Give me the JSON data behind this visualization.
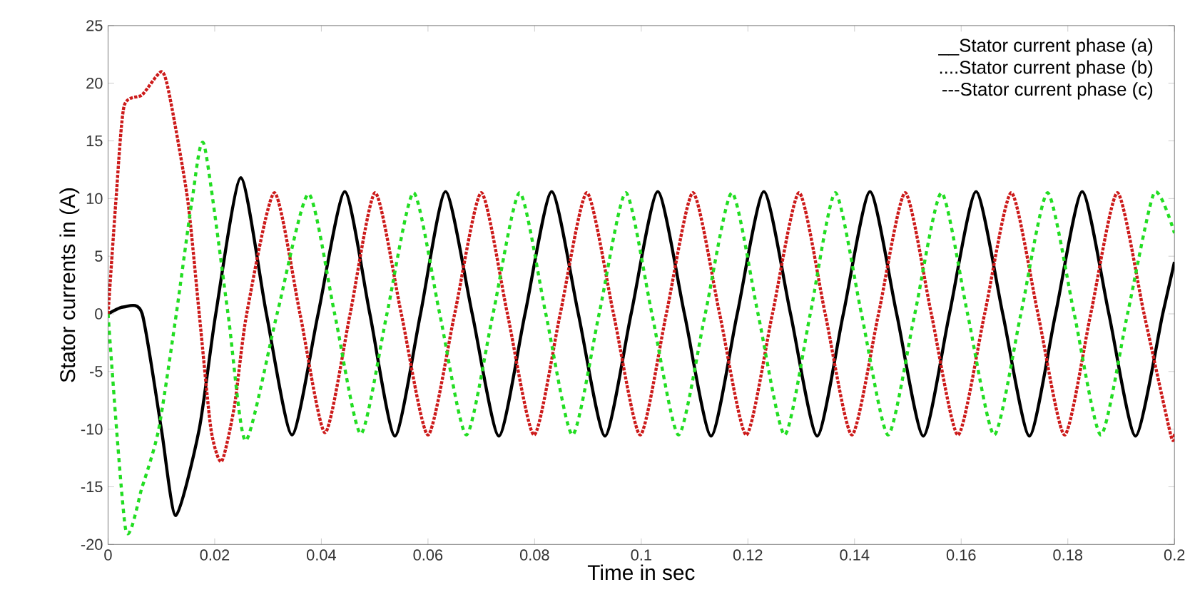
{
  "chart_data": {
    "type": "line",
    "xlabel": "Time in sec",
    "ylabel": "Stator currents in (A)",
    "xlim": [
      0,
      0.2
    ],
    "ylim": [
      -20,
      25
    ],
    "xticks": [
      0,
      0.02,
      0.04,
      0.06,
      0.08,
      0.1,
      0.12,
      0.14,
      0.16,
      0.18,
      0.2
    ],
    "yticks": [
      -20,
      -15,
      -10,
      -5,
      0,
      5,
      10,
      15,
      20,
      25
    ],
    "grid": false,
    "marker": "none",
    "annotations": [
      "__Stator current phase (a)",
      "....Stator current phase (b)",
      "---Stator current phase (c)"
    ],
    "series": [
      {
        "color": "#000000",
        "line_style": "solid",
        "x": [
          0,
          0.003,
          0.0064,
          0.01,
          0.0127,
          0.0171,
          0.0202,
          0.0249,
          0.0297,
          0.0345,
          0.0394,
          0.0444,
          0.0491,
          0.0538,
          0.0586,
          0.0633,
          0.0683,
          0.0733,
          0.0782,
          0.0832,
          0.0882,
          0.0932,
          0.0981,
          0.1031,
          0.1081,
          0.1131,
          0.118,
          0.123,
          0.128,
          0.133,
          0.1379,
          0.1429,
          0.1479,
          0.1529,
          0.1578,
          0.1628,
          0.1678,
          0.1728,
          0.1777,
          0.1827,
          0.1877,
          0.1927,
          0.1978,
          0.2
        ],
        "values": [
          0,
          0.6,
          0,
          -10,
          -17.5,
          -10,
          0,
          11.8,
          0,
          -10.5,
          0,
          10.6,
          0,
          -10.6,
          0,
          10.6,
          0,
          -10.6,
          0,
          10.6,
          0,
          -10.6,
          0,
          10.6,
          0,
          -10.6,
          0,
          10.6,
          0,
          -10.6,
          0,
          10.6,
          0,
          -10.6,
          0,
          10.6,
          0,
          -10.6,
          0,
          10.6,
          0,
          -10.6,
          0,
          4.5
        ]
      },
      {
        "color": "#cc1a1a",
        "line_style": "dotted",
        "x": [
          0,
          0.0015,
          0.003,
          0.0064,
          0.01,
          0.0115,
          0.0149,
          0.0171,
          0.0193,
          0.0213,
          0.0237,
          0.026,
          0.0312,
          0.036,
          0.0407,
          0.0454,
          0.0501,
          0.055,
          0.06,
          0.065,
          0.07,
          0.0749,
          0.0799,
          0.0848,
          0.0898,
          0.0948,
          0.0998,
          0.1047,
          0.1097,
          0.1147,
          0.1197,
          0.1246,
          0.1296,
          0.1345,
          0.1395,
          0.1445,
          0.1495,
          0.1544,
          0.1594,
          0.1644,
          0.1694,
          0.1744,
          0.1794,
          0.1843,
          0.1893,
          0.1943,
          0.1993,
          0.2
        ],
        "values": [
          0,
          10,
          18,
          19,
          21,
          19,
          10,
          0,
          -10,
          -12.8,
          -8,
          0,
          10.5,
          0,
          -10.3,
          0,
          10.5,
          0,
          -10.5,
          0,
          10.5,
          0,
          -10.5,
          0,
          10.5,
          0,
          -10.5,
          0,
          10.5,
          0,
          -10.5,
          0,
          10.5,
          0,
          -10.5,
          0,
          10.5,
          0,
          -10.5,
          0,
          10.5,
          0,
          -10.5,
          0,
          10.5,
          0,
          -10.5,
          -10.4
        ]
      },
      {
        "color": "#22dd22",
        "line_style": "dashed",
        "x": [
          0,
          0.0033,
          0.0064,
          0.0095,
          0.0128,
          0.0158,
          0.018,
          0.0225,
          0.0258,
          0.0317,
          0.0376,
          0.0425,
          0.0474,
          0.0523,
          0.0573,
          0.0622,
          0.0672,
          0.0722,
          0.0772,
          0.0821,
          0.0871,
          0.0921,
          0.0971,
          0.102,
          0.107,
          0.112,
          0.117,
          0.1219,
          0.1269,
          0.1317,
          0.1364,
          0.1413,
          0.1463,
          0.1513,
          0.1563,
          0.1612,
          0.1662,
          0.1712,
          0.1762,
          0.1812,
          0.1862,
          0.1912,
          0.1962,
          0.2
        ],
        "values": [
          0,
          -18.7,
          -15,
          -10,
          0,
          10,
          14.7,
          0,
          -11,
          0,
          10.4,
          0,
          -10.4,
          0,
          10.5,
          0,
          -10.5,
          0,
          10.5,
          0,
          -10.5,
          0,
          10.5,
          0,
          -10.5,
          0,
          10.5,
          0,
          -10.5,
          0,
          10.5,
          0,
          -10.5,
          0,
          10.5,
          0,
          -10.5,
          0,
          10.5,
          0,
          -10.5,
          0,
          10.5,
          7
        ]
      }
    ]
  }
}
